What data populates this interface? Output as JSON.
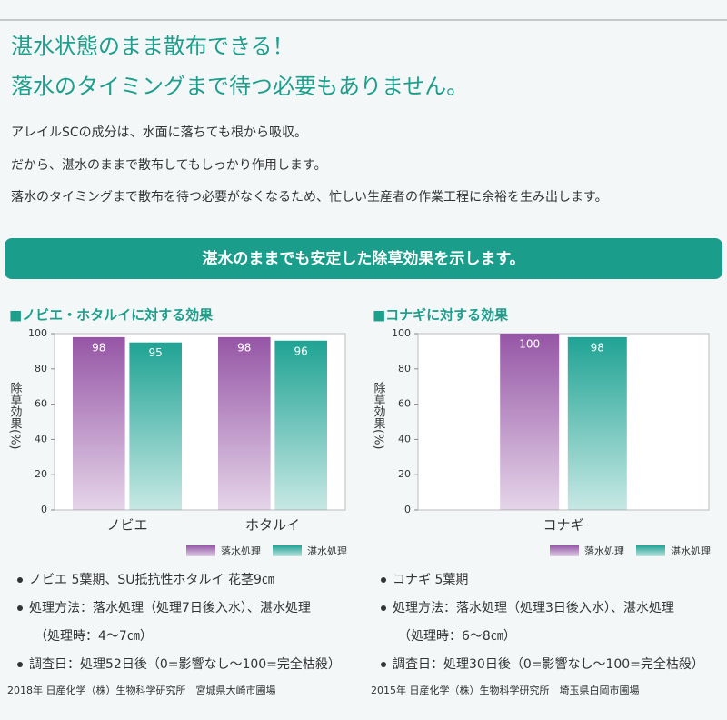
{
  "header": {
    "title_lines": [
      "湛水状態のまま散布できる！",
      "落水のタイミングまで待つ必要もありません。"
    ],
    "paragraphs": [
      "アレイルSCの成分は、水面に落ちても根から吸収。",
      "だから、湛水のままで散布してもしっかり作用します。",
      "落水のタイミングまで散布を待つ必要がなくなるため、忙しい生産者の作業工程に余裕を生み出します。"
    ]
  },
  "banner": "湛水のままでも安定した除草効果を示します。",
  "chart_data": [
    {
      "type": "bar",
      "title": "■ノビエ・ホタルイに対する効果",
      "y_label": "除草効果(%)",
      "categories": [
        "ノビエ",
        "ホタルイ"
      ],
      "series": [
        {
          "name": "落水処理",
          "color": "#9656a6",
          "values": [
            98,
            98
          ]
        },
        {
          "name": "湛水処理",
          "color": "#1fa394",
          "values": [
            95,
            96
          ]
        }
      ],
      "ylim": [
        0,
        100
      ],
      "yticks": [
        0,
        20,
        40,
        60,
        80,
        100
      ],
      "notes": [
        {
          "text": "ノビエ 5葉期、SU抵抗性ホタルイ 花茎9㎝",
          "bullet": true
        },
        {
          "text": "処理方法：落水処理（処理7日後入水）、湛水処理",
          "bullet": true
        },
        {
          "text": "（処理時：4〜7㎝）",
          "bullet": false
        },
        {
          "text": "調査日：処理52日後（0=影響なし〜100=完全枯殺）",
          "bullet": true
        }
      ],
      "source": "2018年 日産化学（株）生物科学研究所　宮城県大崎市圃場"
    },
    {
      "type": "bar",
      "title": "■コナギに対する効果",
      "y_label": "除草効果(%)",
      "categories": [
        "コナギ"
      ],
      "series": [
        {
          "name": "落水処理",
          "color": "#9656a6",
          "values": [
            100
          ]
        },
        {
          "name": "湛水処理",
          "color": "#1fa394",
          "values": [
            98
          ]
        }
      ],
      "ylim": [
        0,
        100
      ],
      "yticks": [
        0,
        20,
        40,
        60,
        80,
        100
      ],
      "notes": [
        {
          "text": "コナギ 5葉期",
          "bullet": true
        },
        {
          "text": "処理方法：落水処理（処理3日後入水）、湛水処理",
          "bullet": true
        },
        {
          "text": "（処理時：6〜8㎝）",
          "bullet": false
        },
        {
          "text": "調査日：処理30日後（0=影響なし〜100=完全枯殺）",
          "bullet": true
        }
      ],
      "source": "2015年 日産化学（株）生物科学研究所　埼玉県白岡市圃場"
    }
  ]
}
